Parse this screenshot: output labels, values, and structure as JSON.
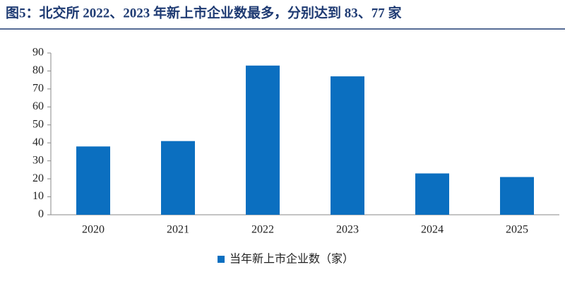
{
  "chart_data": {
    "type": "bar",
    "title": "图5：北交所 2022、2023 年新上市企业数最多，分别达到 83、77 家",
    "categories": [
      "2020",
      "2021",
      "2022",
      "2023",
      "2024",
      "2025"
    ],
    "series": [
      {
        "name": "当年新上市企业数（家）",
        "color": "#0b6fc0",
        "values": [
          38,
          41,
          83,
          77,
          23,
          21
        ]
      }
    ],
    "ylim": [
      0,
      90
    ],
    "yticks": [
      0,
      10,
      20,
      30,
      40,
      50,
      60,
      70,
      80,
      90
    ],
    "legend": "bottom"
  }
}
